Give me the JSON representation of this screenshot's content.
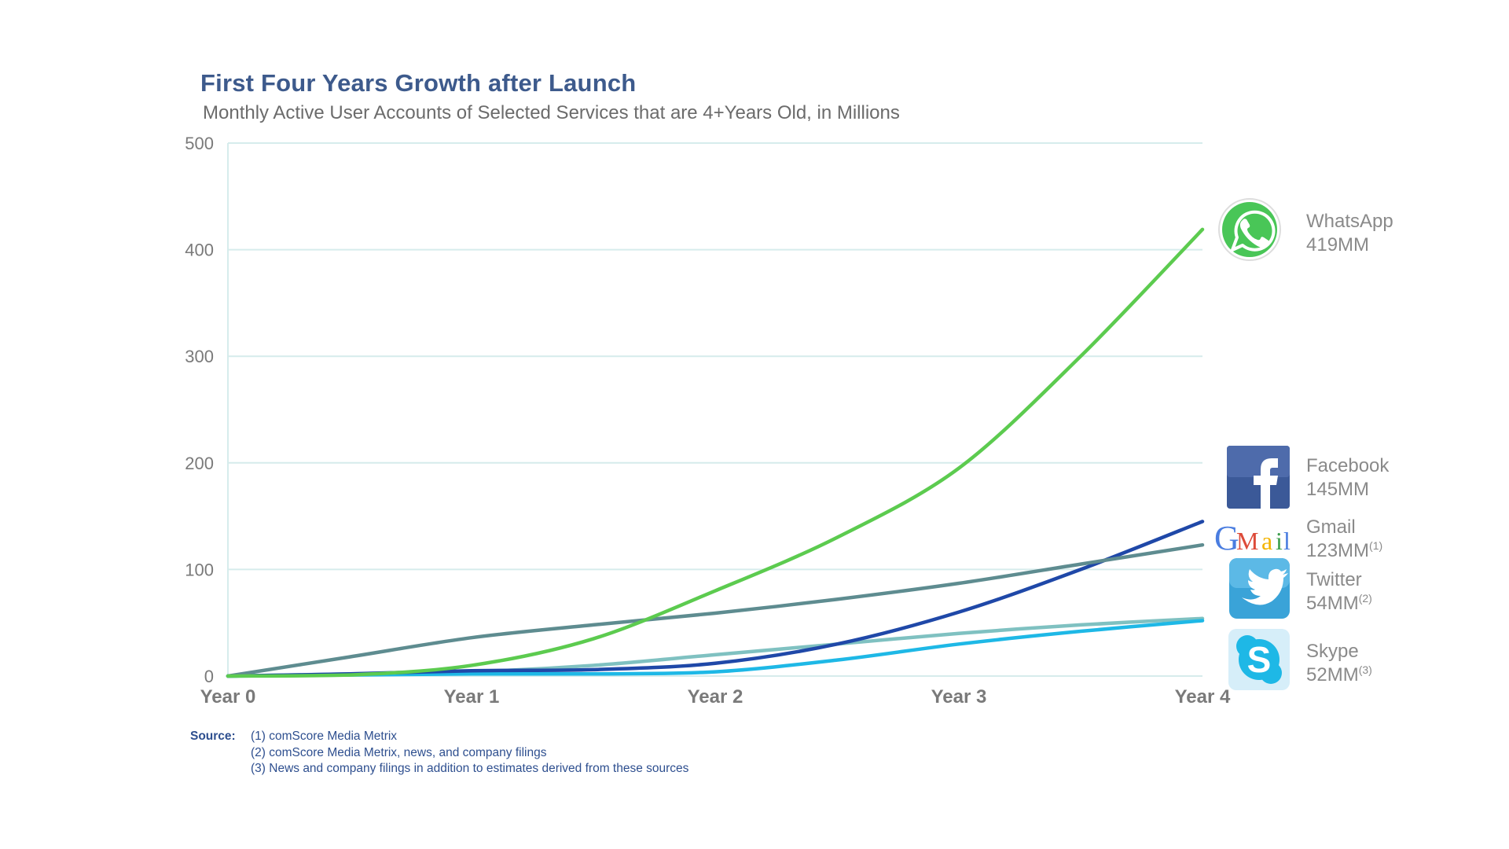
{
  "title": "First Four Years Growth after Launch",
  "subtitle": "Monthly Active User Accounts of Selected Services that are 4+Years Old, in Millions",
  "source": {
    "label": "Source:",
    "notes": [
      "(1) comScore Media Metrix",
      "(2) comScore Media Metrix, news, and company filings",
      "(3) News and company filings in addition to estimates derived from these sources"
    ]
  },
  "chart_data": {
    "type": "line",
    "title": "First Four Years Growth after Launch",
    "subtitle": "Monthly Active User Accounts of Selected Services that are 4+Years Old, in Millions",
    "categories": [
      "Year 0",
      "Year 1",
      "Year 2",
      "Year 3",
      "Year 4"
    ],
    "ylim": [
      0,
      500
    ],
    "yticks": [
      0,
      100,
      200,
      300,
      400,
      500
    ],
    "grid": true,
    "legend_position": "right",
    "series": [
      {
        "name": "WhatsApp",
        "label": "419MM",
        "sup": "",
        "color": "#5ccb4f",
        "icon": "whatsapp-icon",
        "x": [
          0,
          0.5,
          1,
          1.5,
          2,
          2.5,
          3,
          3.5,
          4
        ],
        "values": [
          0,
          1,
          10,
          35,
          80,
          130,
          195,
          300,
          419
        ]
      },
      {
        "name": "Facebook",
        "label": "145MM",
        "sup": "",
        "color": "#1f48a8",
        "icon": "facebook-icon",
        "x": [
          0,
          0.5,
          1,
          1.5,
          2,
          2.5,
          3,
          3.5,
          4
        ],
        "values": [
          0,
          2,
          5,
          6,
          12,
          30,
          60,
          100,
          145
        ]
      },
      {
        "name": "Gmail",
        "label": "123MM",
        "sup": "(1)",
        "color": "#5e8c90",
        "icon": "gmail-icon",
        "x": [
          0,
          0.5,
          1,
          1.5,
          2,
          2.5,
          3,
          3.5,
          4
        ],
        "values": [
          0,
          18,
          36,
          48,
          59,
          72,
          87,
          105,
          123
        ]
      },
      {
        "name": "Twitter",
        "label": "54MM",
        "sup": "(2)",
        "color": "#7fc1c1",
        "icon": "twitter-icon",
        "x": [
          0,
          0.5,
          1,
          1.5,
          2,
          2.5,
          3,
          3.5,
          4
        ],
        "values": [
          0,
          2,
          4,
          10,
          20,
          30,
          40,
          48,
          54
        ]
      },
      {
        "name": "Skype",
        "label": "52MM",
        "sup": "(3)",
        "color": "#1eb8e6",
        "icon": "skype-icon",
        "x": [
          0,
          0.5,
          1,
          1.5,
          2,
          2.5,
          3,
          3.5,
          4
        ],
        "values": [
          0,
          1,
          2,
          2,
          4,
          15,
          30,
          42,
          52
        ]
      }
    ],
    "legend_labels": [
      {
        "name": "WhatsApp",
        "label": "419MM",
        "sup": ""
      },
      {
        "name": "Facebook",
        "label": "145MM",
        "sup": ""
      },
      {
        "name": "Gmail",
        "label": "123MM",
        "sup": "(1)"
      },
      {
        "name": "Twitter",
        "label": "54MM",
        "sup": "(2)"
      },
      {
        "name": "Skype",
        "label": "52MM",
        "sup": "(3)"
      }
    ]
  }
}
